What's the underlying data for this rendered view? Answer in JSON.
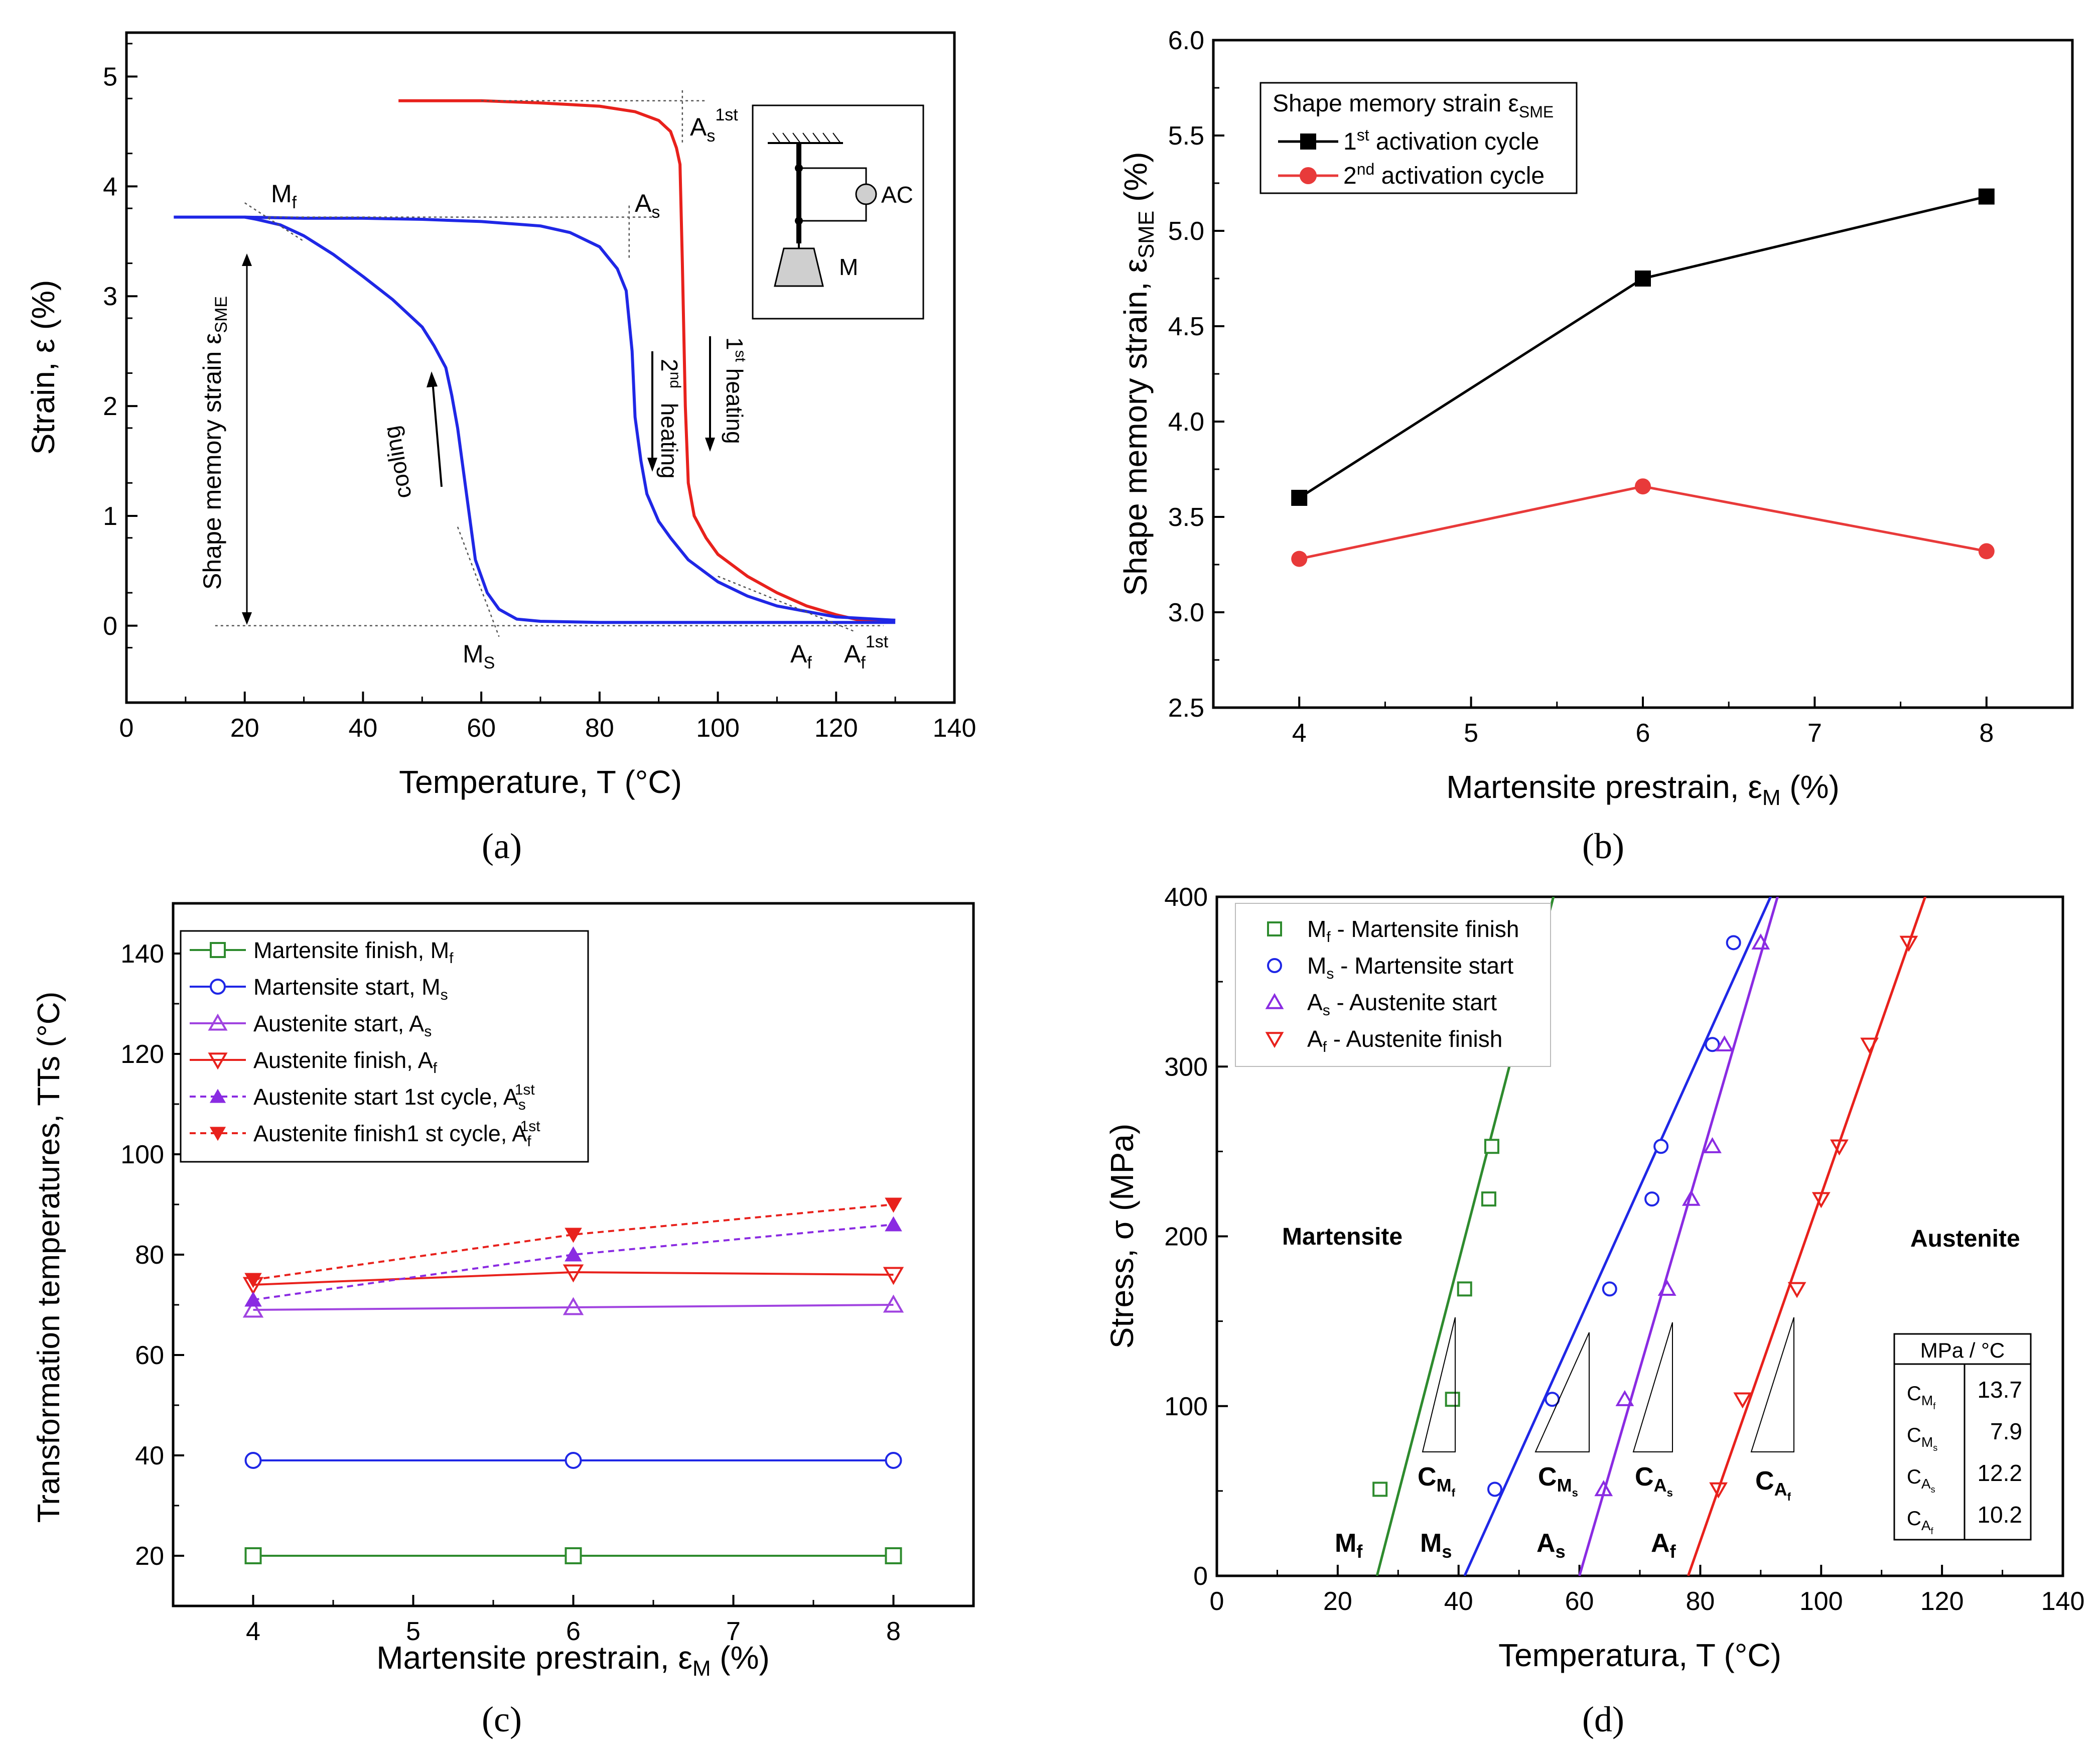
{
  "panels": {
    "a": {
      "caption": "(a)",
      "xlabel": "Temperature, T (°C)",
      "ylabel": "Strain, ε (%)",
      "annotations": {
        "mf_main": "M",
        "mf_sub": "f",
        "as_main": "A",
        "as_sub": "s",
        "as1_main": "A",
        "as1_sub": "s",
        "as1_sup": "1st",
        "ms_main": "M",
        "ms_sub": "S",
        "af_main": "A",
        "af_sub": "f",
        "af1_main": "A",
        "af1_sub": "f",
        "af1_sup": "1st",
        "sme_text": "Shape memory strain ε",
        "sme_sub": "SME",
        "cooling": "cooling",
        "second_num": "2",
        "second_sup": "nd",
        "second_heating": "heating",
        "first_num": "1",
        "first_sup": "st",
        "first_heating": "heating",
        "inset_ac": "AC",
        "inset_m": "M"
      }
    },
    "b": {
      "caption": "(b)",
      "xlabel_main": "Martensite prestrain, ε",
      "xlabel_sub": "M",
      "xlabel_end": " (%)",
      "ylabel_main": "Shape memory strain, ε",
      "ylabel_sub": "SME",
      "ylabel_end": " (%)",
      "legend_title_main": "Shape memory strain ε",
      "legend_title_sub": "SME",
      "legend": [
        {
          "num": "1",
          "sup": "st",
          "text": " activation cycle"
        },
        {
          "num": "2",
          "sup": "nd",
          "text": " activation cycle"
        }
      ]
    },
    "c": {
      "caption": "(c)",
      "xlabel_main": "Martensite prestrain, ε",
      "xlabel_sub": "M",
      "xlabel_end": " (%)",
      "ylabel": "Transformation temperatures, TTs (°C)",
      "legend": [
        {
          "text": "Martensite finish, M",
          "sub": "f",
          "sup": ""
        },
        {
          "text": "Martensite start, M",
          "sub": "s",
          "sup": ""
        },
        {
          "text": "Austenite start, A",
          "sub": "s",
          "sup": ""
        },
        {
          "text": "Austenite finish, A",
          "sub": "f",
          "sup": ""
        },
        {
          "text": "Austenite start 1st cycle, A",
          "sub": "s",
          "sup": "1st"
        },
        {
          "text": "Austenite finish1 st cycle, A",
          "sub": "f",
          "sup": "1st"
        }
      ]
    },
    "d": {
      "caption": "(d)",
      "xlabel": "Temperatura, T (°C)",
      "ylabel": "Stress, σ (MPa)",
      "legend": [
        {
          "main": "M",
          "sub": "f",
          "text": " - Martensite finish"
        },
        {
          "main": "M",
          "sub": "s",
          "text": " - Martensite start"
        },
        {
          "main": "A",
          "sub": "s",
          "text": " - Austenite start"
        },
        {
          "main": "A",
          "sub": "f",
          "text": " - Austenite finish"
        }
      ],
      "region_martensite": "Martensite",
      "region_austenite": "Austenite",
      "line_labels": [
        {
          "main": "M",
          "sub": "f"
        },
        {
          "main": "M",
          "sub": "s"
        },
        {
          "main": "A",
          "sub": "s"
        },
        {
          "main": "A",
          "sub": "f"
        }
      ],
      "slope_labels": [
        {
          "main": "C",
          "sub": "M",
          "subsub": "f"
        },
        {
          "main": "C",
          "sub": "M",
          "subsub": "s"
        },
        {
          "main": "C",
          "sub": "A",
          "subsub": "s"
        },
        {
          "main": "C",
          "sub": "A",
          "subsub": "f"
        }
      ],
      "table_header": "MPa / °C",
      "table_rows": [
        {
          "sub": "M",
          "subsub": "f",
          "value": "13.7"
        },
        {
          "sub": "M",
          "subsub": "s",
          "value": "7.9"
        },
        {
          "sub": "A",
          "subsub": "s",
          "value": "12.2"
        },
        {
          "sub": "A",
          "subsub": "f",
          "value": "10.2"
        }
      ]
    }
  },
  "chart_data": [
    {
      "panel": "a",
      "type": "line",
      "xlim": [
        0,
        140
      ],
      "ylim": [
        -0.7,
        5.4
      ],
      "xticks": [
        0,
        20,
        40,
        60,
        80,
        100,
        120,
        140
      ],
      "yticks": [
        0,
        1,
        2,
        3,
        4,
        5
      ],
      "series": [
        {
          "name": "1st heating",
          "color": "#e8211c",
          "x": [
            46,
            60,
            70,
            80,
            86,
            90,
            92,
            93,
            93.6,
            94,
            94.5,
            95,
            96,
            98,
            100,
            105,
            110,
            115,
            120,
            124,
            130
          ],
          "y": [
            4.78,
            4.78,
            4.76,
            4.73,
            4.68,
            4.6,
            4.5,
            4.35,
            4.2,
            3.3,
            2.0,
            1.3,
            1.0,
            0.8,
            0.65,
            0.45,
            0.3,
            0.18,
            0.1,
            0.05,
            0.05
          ]
        },
        {
          "name": "cooling",
          "color": "#1f27e6",
          "x": [
            130,
            100,
            80,
            70,
            66,
            63,
            61,
            59,
            58,
            57,
            56,
            55,
            54,
            52,
            50,
            45,
            40,
            35,
            30,
            26,
            22,
            20,
            8
          ],
          "y": [
            0.03,
            0.03,
            0.03,
            0.04,
            0.06,
            0.15,
            0.3,
            0.6,
            1.0,
            1.4,
            1.8,
            2.1,
            2.35,
            2.55,
            2.72,
            2.97,
            3.18,
            3.38,
            3.55,
            3.65,
            3.7,
            3.72,
            3.72
          ]
        },
        {
          "name": "2nd heating",
          "color": "#1f27e6",
          "x": [
            20,
            30,
            40,
            50,
            60,
            65,
            70,
            75,
            80,
            83,
            84.5,
            85.5,
            86,
            87,
            88,
            90,
            92,
            95,
            100,
            105,
            110,
            120,
            130
          ],
          "y": [
            3.72,
            3.71,
            3.71,
            3.7,
            3.68,
            3.66,
            3.64,
            3.58,
            3.45,
            3.25,
            3.05,
            2.5,
            1.9,
            1.5,
            1.2,
            0.95,
            0.8,
            0.6,
            0.4,
            0.27,
            0.18,
            0.08,
            0.05
          ]
        }
      ],
      "points": {
        "Mf": 20,
        "Ms": 61,
        "As": 85,
        "Af": 112,
        "As_1st": 94,
        "Af_1st": 123
      }
    },
    {
      "panel": "b",
      "type": "line",
      "xlim": [
        3.5,
        8.5
      ],
      "ylim": [
        2.5,
        6.0
      ],
      "xticks": [
        4,
        5,
        6,
        7,
        8
      ],
      "yticks": [
        2.5,
        3.0,
        3.5,
        4.0,
        4.5,
        5.0,
        5.5,
        6.0
      ],
      "x": [
        4,
        6,
        8
      ],
      "series": [
        {
          "name": "1st activation cycle",
          "color": "#000000",
          "marker": "square",
          "values": [
            3.6,
            4.75,
            5.18
          ]
        },
        {
          "name": "2nd activation cycle",
          "color": "#e83a3a",
          "marker": "circle",
          "values": [
            3.28,
            3.66,
            3.32
          ]
        }
      ]
    },
    {
      "panel": "c",
      "type": "line",
      "xlim": [
        3.5,
        8.5
      ],
      "ylim": [
        10,
        150
      ],
      "xticks": [
        4,
        5,
        6,
        7,
        8
      ],
      "yticks": [
        20,
        40,
        60,
        80,
        100,
        120,
        140
      ],
      "x": [
        4,
        6,
        8
      ],
      "series": [
        {
          "name": "Martensite finish, Mf",
          "color": "#2e8b2e",
          "marker": "square-open",
          "dash": false,
          "values": [
            20,
            20,
            20
          ]
        },
        {
          "name": "Martensite start, Ms",
          "color": "#1f27e6",
          "marker": "circle-open",
          "dash": false,
          "values": [
            39,
            39,
            39
          ]
        },
        {
          "name": "Austenite start, As",
          "color": "#a043e0",
          "marker": "triangle-up-open",
          "dash": false,
          "values": [
            69,
            69.5,
            70
          ]
        },
        {
          "name": "Austenite finish, Af",
          "color": "#e8211c",
          "marker": "triangle-down-open",
          "dash": false,
          "values": [
            74,
            76.5,
            76
          ]
        },
        {
          "name": "Austenite start 1st cycle, As1st",
          "color": "#8a2be2",
          "marker": "triangle-up",
          "dash": true,
          "values": [
            71,
            80,
            86
          ]
        },
        {
          "name": "Austenite finish1 st cycle, Af1st",
          "color": "#e8211c",
          "marker": "triangle-down",
          "dash": true,
          "values": [
            75,
            84,
            90
          ]
        }
      ]
    },
    {
      "panel": "d",
      "type": "scatter",
      "xlim": [
        0,
        140
      ],
      "ylim": [
        0,
        400
      ],
      "xticks": [
        0,
        20,
        40,
        60,
        80,
        100,
        120,
        140
      ],
      "yticks": [
        0,
        100,
        200,
        300,
        400
      ],
      "series": [
        {
          "name": "Mf - Martensite finish",
          "color": "#2e8b2e",
          "marker": "square-open",
          "x": [
            27,
            39,
            41,
            45,
            45.5
          ],
          "y": [
            51,
            104,
            169,
            222,
            253
          ],
          "fit": {
            "x0": 26.5,
            "slope": 13.7
          }
        },
        {
          "name": "Ms - Martensite start",
          "color": "#1f27e6",
          "marker": "circle-open",
          "x": [
            46,
            55.5,
            65,
            72,
            73.5,
            82,
            85.5
          ],
          "y": [
            51,
            104,
            169,
            222,
            253,
            313,
            373
          ],
          "fit": {
            "x0": 41,
            "slope": 7.9
          }
        },
        {
          "name": "As - Austenite start",
          "color": "#8a2be2",
          "marker": "triangle-up-open",
          "x": [
            64,
            67.5,
            74.5,
            78.5,
            82,
            84,
            90
          ],
          "y": [
            51,
            104,
            169,
            222,
            253,
            313,
            373
          ],
          "fit": {
            "x0": 60,
            "slope": 12.2
          }
        },
        {
          "name": "Af - Austenite finish",
          "color": "#e8211c",
          "marker": "triangle-down-open",
          "x": [
            83,
            87,
            96,
            100,
            103,
            108,
            114.5
          ],
          "y": [
            51,
            104,
            169,
            222,
            253,
            313,
            373
          ],
          "fit": {
            "x0": 78,
            "slope": 10.2
          }
        }
      ]
    }
  ]
}
